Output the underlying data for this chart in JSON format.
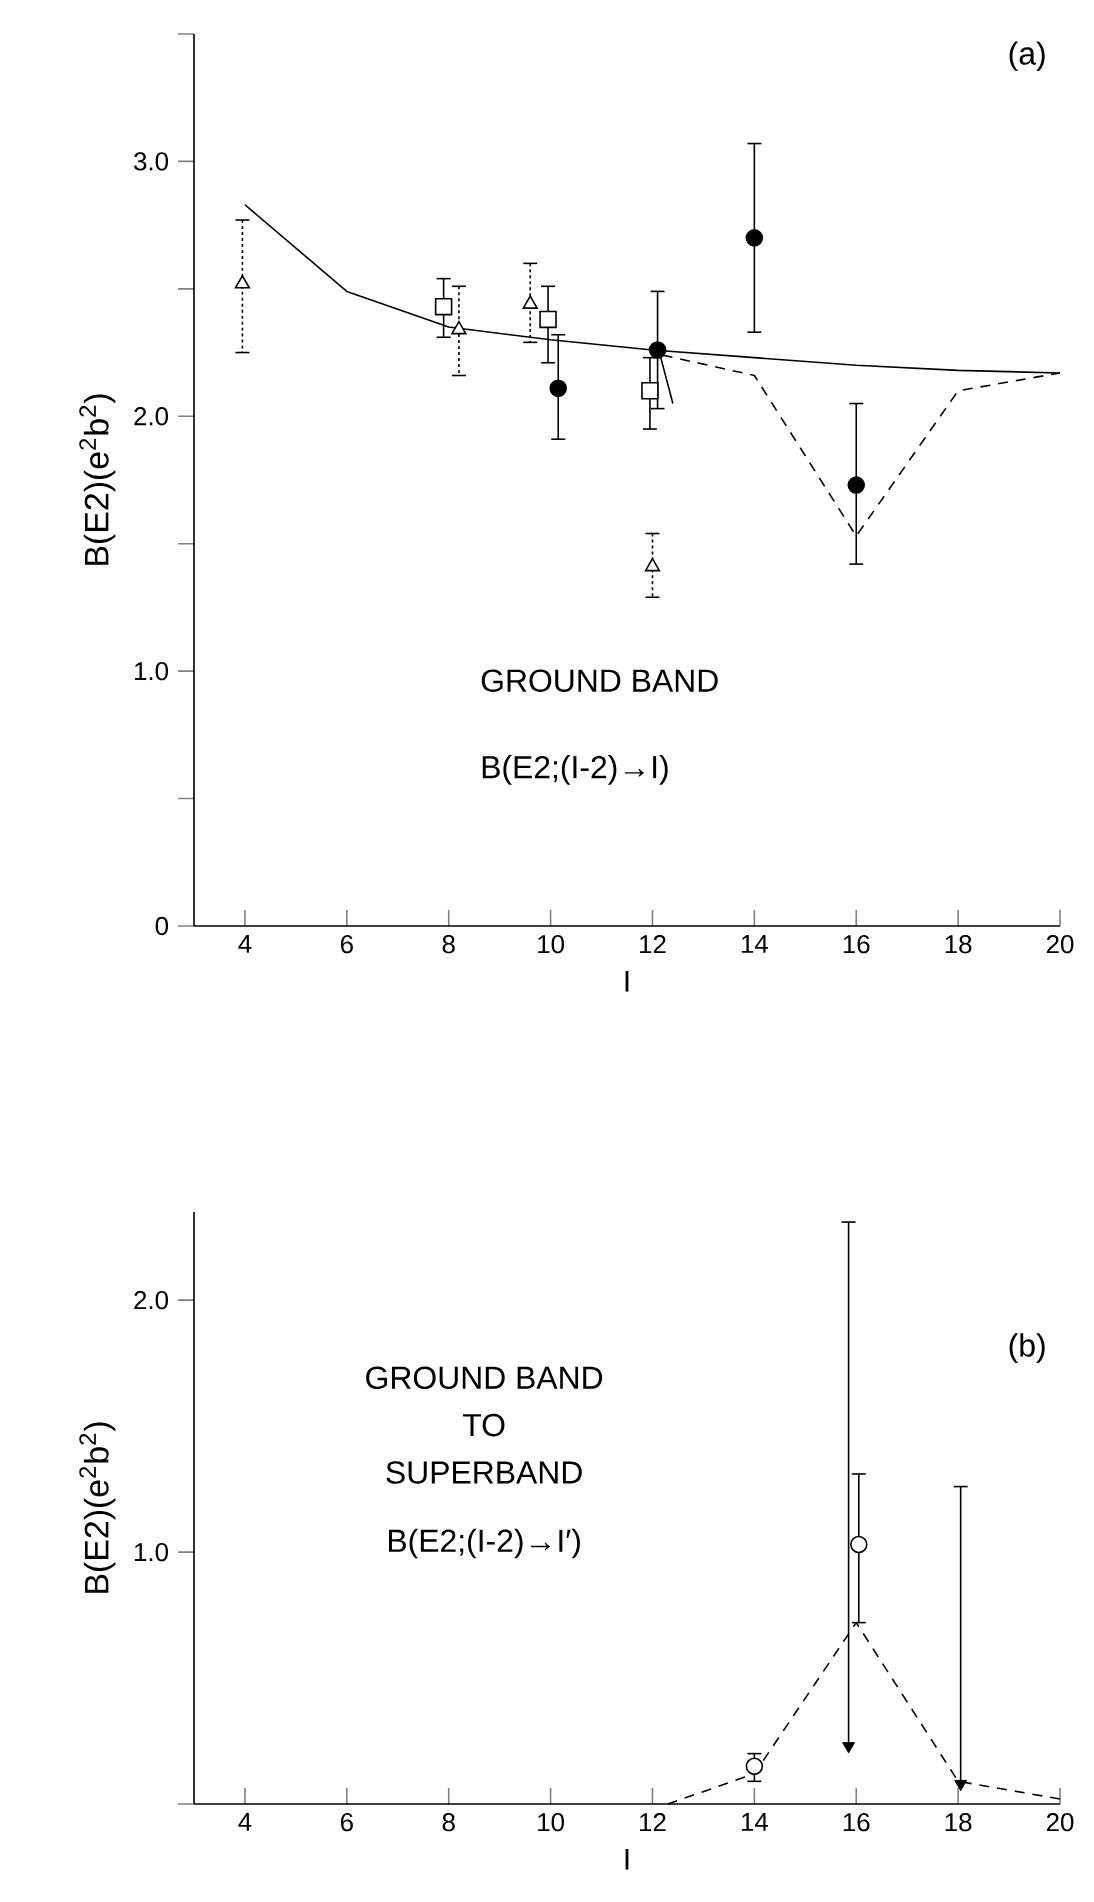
{
  "chart_data": [
    {
      "type": "scatter",
      "xlabel": "I",
      "ylabel": "B(E2)(e$^{2}$b$^{2}$)",
      "xlim": [
        3,
        20
      ],
      "ylim": [
        0,
        3.5
      ],
      "xticks": [
        4,
        6,
        8,
        10,
        12,
        14,
        16,
        18,
        20
      ],
      "yticks": [
        0,
        {
          "value": 0.5,
          "label": null
        },
        {
          "value": 1,
          "label": "1.0"
        },
        {
          "value": 1.5,
          "label": null
        },
        {
          "value": 2,
          "label": "2.0"
        },
        {
          "value": 2.5,
          "label": null
        },
        {
          "value": 3,
          "label": "3.0"
        },
        {
          "value": 3.5,
          "label": null
        }
      ],
      "annotations": [
        "(a)",
        "GROUND BAND",
        "B(E2;(I-2)→I)"
      ],
      "series": [
        {
          "type": "line",
          "color": "#000000",
          "line_style": "solid",
          "x": [
            4,
            6,
            8,
            10,
            12,
            14,
            16,
            18,
            20
          ],
          "values": [
            2.83,
            2.49,
            2.35,
            2.3,
            2.26,
            2.23,
            2.2,
            2.18,
            2.17
          ]
        },
        {
          "type": "line",
          "color": "#000000",
          "line_style": "dashed",
          "x": [
            12.2,
            14,
            16,
            18,
            20
          ],
          "values": [
            2.24,
            2.16,
            1.53,
            2.1,
            2.17
          ]
        },
        {
          "type": "line",
          "color": "#000000",
          "line_style": "solid",
          "x": [
            12.15,
            12.4
          ],
          "values": [
            2.24,
            2.05
          ]
        },
        {
          "color": "#000000",
          "marker": "circle",
          "line_style": "solid",
          "x": [
            10.15,
            12.1,
            14,
            16
          ],
          "values": [
            2.11,
            2.26,
            2.7,
            1.73
          ],
          "errors": [
            [
              1.91,
              2.32
            ],
            [
              2.03,
              2.49
            ],
            [
              2.33,
              3.07
            ],
            [
              1.42,
              2.05
            ]
          ]
        },
        {
          "color": "#000000",
          "marker": "square",
          "line_style": "solid",
          "x": [
            7.9,
            9.95,
            11.95
          ],
          "values": [
            2.43,
            2.38,
            2.1
          ],
          "errors": [
            [
              2.31,
              2.54
            ],
            [
              2.21,
              2.51
            ],
            [
              1.95,
              2.23
            ]
          ]
        },
        {
          "color": "#000000",
          "marker": "triangle",
          "line_style": "dotted",
          "x": [
            3.95,
            8.2,
            9.6,
            12
          ],
          "values": [
            2.52,
            2.34,
            2.44,
            1.41
          ],
          "errors": [
            [
              2.25,
              2.77
            ],
            [
              2.16,
              2.51
            ],
            [
              2.29,
              2.6
            ],
            [
              1.29,
              1.54
            ]
          ]
        }
      ]
    },
    {
      "type": "scatter",
      "xlabel": "I",
      "ylabel": "B(E2)(e$^{2}$b$^{2}$)",
      "xlim": [
        3,
        20
      ],
      "ylim": [
        0,
        2.35
      ],
      "xticks": [
        4,
        6,
        8,
        10,
        12,
        14,
        16,
        18,
        20
      ],
      "yticks": [
        {
          "value": 0,
          "label": null
        },
        {
          "value": 1,
          "label": "1.0"
        },
        {
          "value": 2,
          "label": "2.0"
        }
      ],
      "annotations": [
        "(b)",
        "GROUND BAND",
        "TO",
        "SUPERBAND",
        "B(E2;(I-2)→I′)"
      ],
      "series": [
        {
          "type": "line",
          "color": "#000000",
          "line_style": "dashed",
          "x": [
            12.3,
            14,
            16,
            18,
            20
          ],
          "values": [
            0.0,
            0.12,
            0.72,
            0.09,
            0.02
          ]
        },
        {
          "color": "#000000",
          "marker": "circle",
          "line_style": "solid",
          "x": [
            14,
            16.05
          ],
          "values": [
            0.15,
            1.03
          ],
          "errors": [
            [
              0.09,
              0.2
            ],
            [
              0.72,
              1.31
            ]
          ]
        },
        {
          "color": "#000000",
          "marker": "triangle",
          "line_style": "solid",
          "x": [
            15.85,
            18.05
          ],
          "values": [
            0.23,
            0.08
          ],
          "errors": [
            [
              0.23,
              2.31
            ],
            [
              0.08,
              1.26
            ]
          ]
        }
      ]
    }
  ]
}
